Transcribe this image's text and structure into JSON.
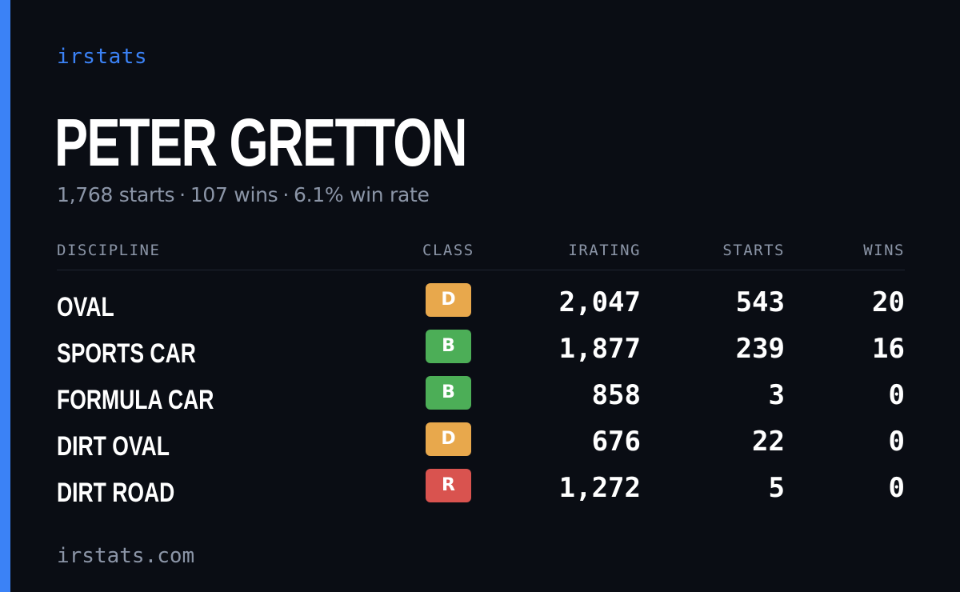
{
  "brand": "irstats",
  "driver": {
    "name": "PETER GRETTON",
    "starts_summary": "1,768 starts",
    "wins_summary": "107 wins",
    "win_rate_summary": "6.1% win rate",
    "separator": "·"
  },
  "table": {
    "headers": {
      "discipline": "DISCIPLINE",
      "class": "CLASS",
      "irating": "IRATING",
      "starts": "STARTS",
      "wins": "WINS"
    },
    "rows": [
      {
        "discipline": "OVAL",
        "class": "D",
        "class_color": "#e8a84c",
        "irating": "2,047",
        "starts": "543",
        "wins": "20"
      },
      {
        "discipline": "SPORTS CAR",
        "class": "B",
        "class_color": "#4cae57",
        "irating": "1,877",
        "starts": "239",
        "wins": "16"
      },
      {
        "discipline": "FORMULA CAR",
        "class": "B",
        "class_color": "#4cae57",
        "irating": "858",
        "starts": "3",
        "wins": "0"
      },
      {
        "discipline": "DIRT OVAL",
        "class": "D",
        "class_color": "#e8a84c",
        "irating": "676",
        "starts": "22",
        "wins": "0"
      },
      {
        "discipline": "DIRT ROAD",
        "class": "R",
        "class_color": "#d9534f",
        "irating": "1,272",
        "starts": "5",
        "wins": "0"
      }
    ]
  },
  "footer": "irstats.com",
  "colors": {
    "background": "#0a0d14",
    "accent": "#3b82f6",
    "muted_text": "#8b95a7"
  }
}
